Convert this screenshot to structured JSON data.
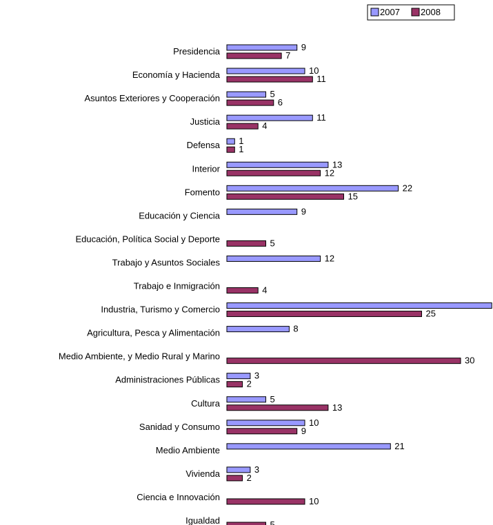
{
  "chart_data": {
    "type": "bar",
    "orientation": "horizontal",
    "legend_position": "top-right",
    "grid": false,
    "xlim": [
      0,
      34
    ],
    "colors": {
      "2007": "#9999ff",
      "2008": "#993366"
    },
    "categories": [
      "Presidencia",
      "Economía y Hacienda",
      "Asuntos Exteriores y Cooperación",
      "Justicia",
      "Defensa",
      "Interior",
      "Fomento",
      "Educación y Ciencia",
      "Educación, Política Social y Deporte",
      "Trabajo y Asuntos Sociales",
      "Trabajo e Inmigración",
      "Industria, Turismo y Comercio",
      "Agricultura, Pesca y Alimentación",
      "Medio Ambiente, y Medio Rural y Marino",
      "Administraciones Públicas",
      "Cultura",
      "Sanidad y Consumo",
      "Medio Ambiente",
      "Vivienda",
      "Ciencia e Innovación",
      "Igualdad"
    ],
    "series": [
      {
        "name": "2007",
        "values": [
          9,
          10,
          5,
          11,
          1,
          13,
          22,
          9,
          null,
          12,
          null,
          34,
          8,
          null,
          3,
          5,
          10,
          21,
          3,
          null,
          null
        ]
      },
      {
        "name": "2008",
        "values": [
          7,
          11,
          6,
          4,
          1,
          12,
          15,
          null,
          5,
          null,
          4,
          25,
          null,
          30,
          2,
          13,
          9,
          null,
          2,
          10,
          5
        ]
      }
    ]
  }
}
